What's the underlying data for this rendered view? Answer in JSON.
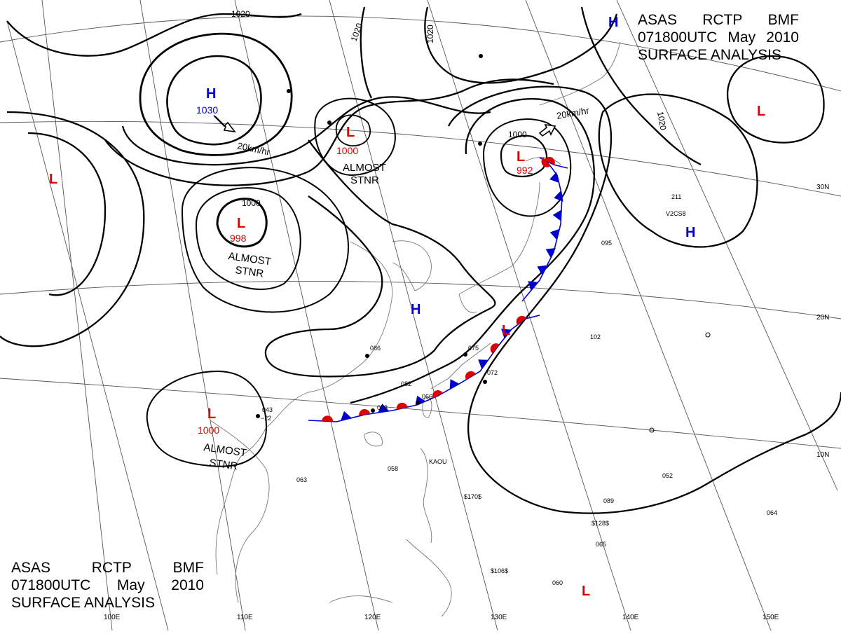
{
  "title": {
    "agency": "ASAS",
    "center": "RCTP",
    "issuer": "BMF",
    "time": "071800UTC",
    "month": "May",
    "year": "2010",
    "product": "SURFACE ANALYSIS"
  },
  "colors": {
    "low": "#dd0000",
    "high": "#0000cc",
    "warm_front": "#dd0000",
    "cold_front": "#0000cc",
    "isobar": "#000000",
    "grid": "#555555",
    "coast": "#777777"
  },
  "isobar_labels": [
    "1020",
    "1020",
    "1020",
    "1020",
    "1000",
    "1000"
  ],
  "pressure_centers": [
    {
      "type": "H",
      "value": "1030"
    },
    {
      "type": "H",
      "value": ""
    },
    {
      "type": "H",
      "value": ""
    },
    {
      "type": "H",
      "value": ""
    },
    {
      "type": "L",
      "value": "1000"
    },
    {
      "type": "L",
      "value": "998"
    },
    {
      "type": "L",
      "value": "1000"
    },
    {
      "type": "L",
      "value": "992"
    },
    {
      "type": "L",
      "value": ""
    },
    {
      "type": "L",
      "value": ""
    },
    {
      "type": "L",
      "value": ""
    },
    {
      "type": "L",
      "value": ""
    }
  ],
  "annotations": {
    "stnr_word_1": "ALMOST",
    "stnr_word_2": "STNR",
    "motion_speed": "20km/hr"
  },
  "grid_labels": {
    "lon": [
      "100E",
      "110E",
      "120E",
      "130E",
      "140E",
      "150E"
    ],
    "lat": [
      "30N",
      "20N",
      "10N"
    ]
  },
  "station_samples": [
    "043",
    "−22",
    "078",
    "082",
    "086",
    "066",
    "075",
    "072",
    "058",
    "063",
    "060",
    "102",
    "095",
    "211",
    "064",
    "052",
    "089",
    "065"
  ],
  "ship_reports": [
    "KAOU",
    "$170$",
    "$128$",
    "$106$",
    "V2CS8"
  ]
}
